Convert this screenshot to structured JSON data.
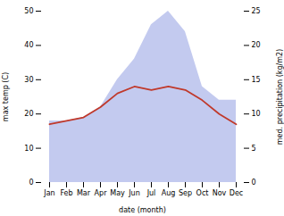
{
  "chart_data": {
    "type": "line",
    "xlabel": "date (month)",
    "ylabel": "max temp (C)",
    "y2label": "med. precipitation (kg/m2)",
    "categories": [
      "Jan",
      "Feb",
      "Mar",
      "Apr",
      "May",
      "Jun",
      "Jul",
      "Aug",
      "Sep",
      "Oct",
      "Nov",
      "Dec"
    ],
    "series": [
      {
        "type": "area",
        "axis": "y2",
        "color": "#aab4e8",
        "values": [
          9,
          9,
          9.5,
          11,
          15,
          18,
          23,
          25,
          22,
          14,
          12,
          12
        ]
      },
      {
        "type": "line",
        "color": "#c0392b",
        "values": [
          17,
          18,
          19,
          22,
          26,
          28,
          27,
          28,
          27,
          24,
          20,
          17
        ]
      }
    ],
    "ylim": [
      0,
      50
    ],
    "yticks": [
      0,
      10,
      20,
      30,
      40,
      50
    ],
    "y2lim": [
      0,
      25
    ],
    "y2ticks": [
      0,
      5,
      10,
      15,
      20,
      25
    ],
    "grid": false
  }
}
